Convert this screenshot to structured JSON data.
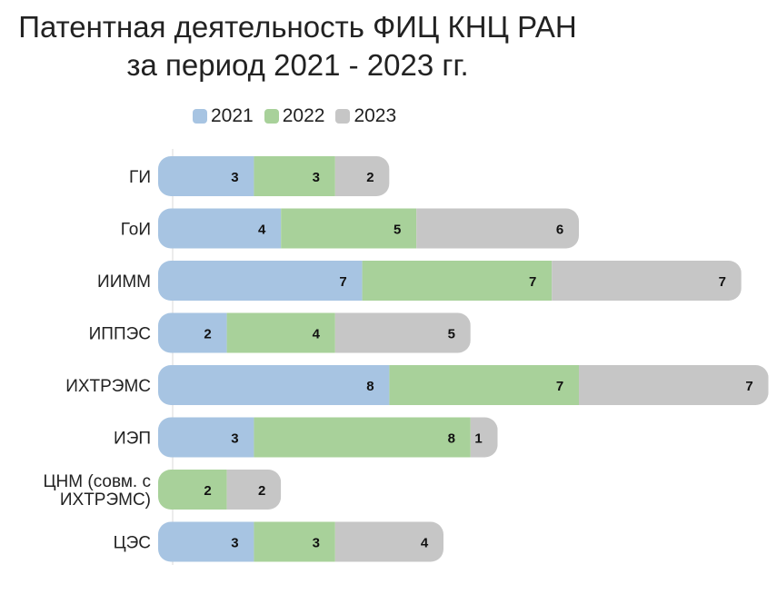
{
  "title_line1": "Патентная деятельность ФИЦ КНЦ РАН",
  "title_line2": "за период 2021 - 2023 гг.",
  "chart_data": {
    "type": "bar",
    "orientation": "horizontal",
    "stacked": true,
    "categories": [
      "ГИ",
      "ГоИ",
      "ИИММ",
      "ИППЭС",
      "ИХТРЭМС",
      "ИЭП",
      "ЦНМ (совм. с ИХТРЭМС)",
      "ЦЭС"
    ],
    "category_lines": [
      [
        "ГИ"
      ],
      [
        "ГоИ"
      ],
      [
        "ИИММ"
      ],
      [
        "ИППЭС"
      ],
      [
        "ИХТРЭМС"
      ],
      [
        "ИЭП"
      ],
      [
        "ЦНМ (совм. с",
        "ИХТРЭМС)"
      ],
      [
        "ЦЭС"
      ]
    ],
    "series": [
      {
        "name": "2021",
        "color": "#a7c4e2",
        "values": [
          3,
          4,
          7,
          2,
          8,
          3,
          0,
          3
        ]
      },
      {
        "name": "2022",
        "color": "#a8d19a",
        "values": [
          3,
          5,
          7,
          4,
          7,
          8,
          2,
          3
        ]
      },
      {
        "name": "2023",
        "color": "#c6c6c6",
        "values": [
          2,
          6,
          7,
          5,
          7,
          1,
          2,
          4
        ]
      }
    ],
    "xlim": [
      0,
      22
    ],
    "legend_position": "top",
    "grid": false,
    "data_labels": true
  }
}
